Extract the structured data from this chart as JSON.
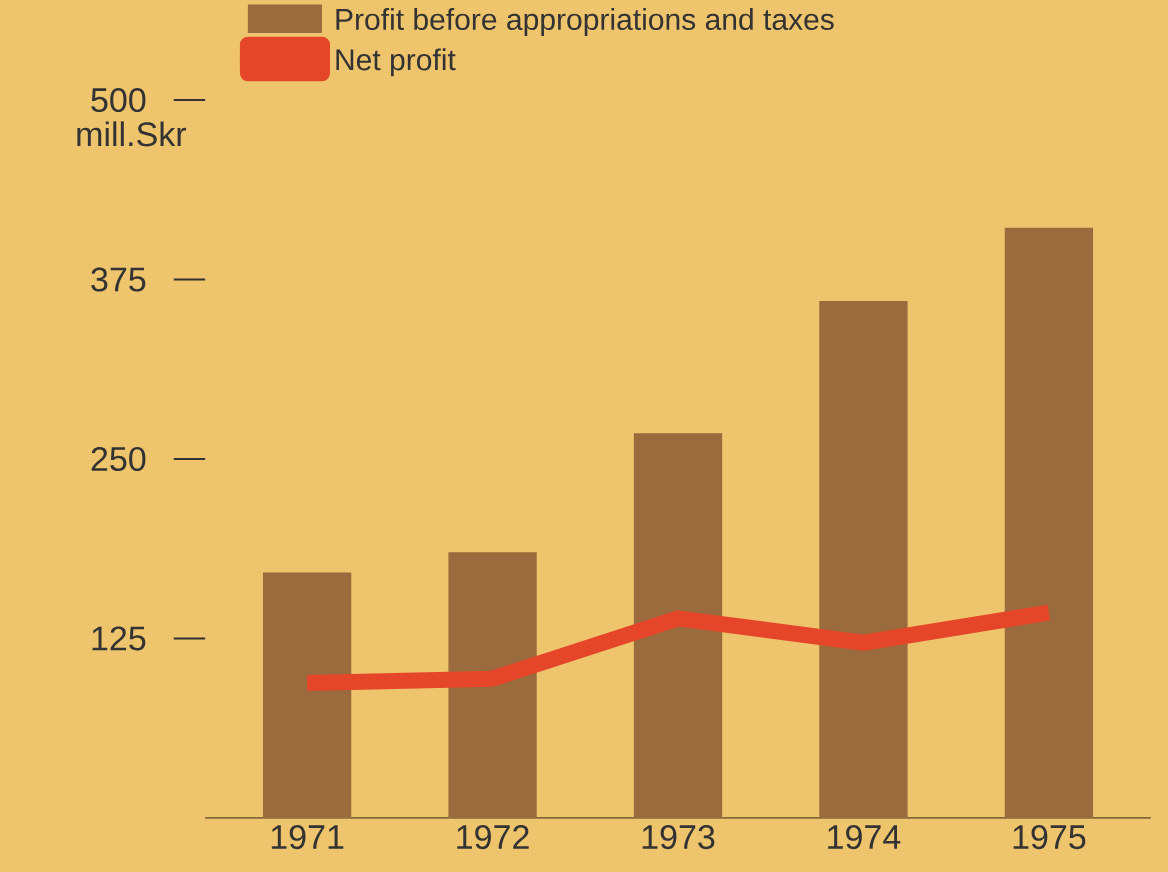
{
  "chart_data": {
    "type": "bar",
    "ylabel": "mill.Skr",
    "categories": [
      "1971",
      "1972",
      "1973",
      "1974",
      "1975"
    ],
    "series": [
      {
        "name": "Profit before appropriations and taxes",
        "color": "#9a6b3c",
        "values": [
          171,
          185,
          268,
          360,
          411
        ]
      },
      {
        "name": "Net profit",
        "type": "line",
        "color": "#e5462a",
        "values": [
          94,
          97,
          139,
          122,
          143
        ]
      }
    ],
    "ylim": [
      0,
      500
    ],
    "yticks": [
      125,
      250,
      375,
      500
    ],
    "legend": "top left"
  }
}
